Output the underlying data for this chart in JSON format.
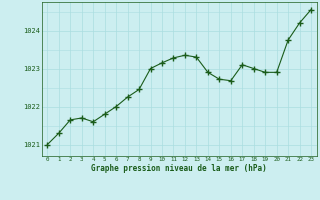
{
  "x": [
    0,
    1,
    2,
    3,
    4,
    5,
    6,
    7,
    8,
    9,
    10,
    11,
    12,
    13,
    14,
    15,
    16,
    17,
    18,
    19,
    20,
    21,
    22,
    23
  ],
  "y": [
    1021.0,
    1021.3,
    1021.65,
    1021.7,
    1021.6,
    1021.8,
    1022.0,
    1022.25,
    1022.45,
    1023.0,
    1023.15,
    1023.28,
    1023.35,
    1023.3,
    1022.9,
    1022.72,
    1022.68,
    1023.1,
    1023.0,
    1022.9,
    1022.9,
    1023.75,
    1024.2,
    1024.55
  ],
  "line_color": "#1a5c1a",
  "marker_color": "#1a5c1a",
  "bg_color": "#cceef0",
  "grid_color_major": "#aadde0",
  "grid_color_minor": "#bbe8eb",
  "xlabel": "Graphe pression niveau de la mer (hPa)",
  "xlabel_color": "#1a5c1a",
  "tick_color": "#1a5c1a",
  "ylim": [
    1020.7,
    1024.75
  ],
  "yticks": [
    1021,
    1022,
    1023,
    1024
  ],
  "xticks": [
    0,
    1,
    2,
    3,
    4,
    5,
    6,
    7,
    8,
    9,
    10,
    11,
    12,
    13,
    14,
    15,
    16,
    17,
    18,
    19,
    20,
    21,
    22,
    23
  ]
}
